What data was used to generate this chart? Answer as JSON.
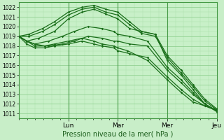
{
  "bg_color": "#c8eec8",
  "plot_bg_color": "#c8f0c8",
  "grid_major_color": "#88cc88",
  "grid_minor_color": "#aaddaa",
  "line_color": "#1a6e1a",
  "xlabel": "Pression niveau de la mer( hPa )",
  "ylim": [
    1010.5,
    1022.5
  ],
  "ytick_min": 1011,
  "ytick_max": 1022,
  "day_labels": [
    "Lun",
    "Mar",
    "Mer",
    "Jeu"
  ],
  "total_days": 4,
  "series": [
    {
      "x": [
        0,
        0.05,
        0.12,
        0.18,
        0.25,
        0.32,
        0.38,
        0.44,
        0.5,
        0.56,
        0.62,
        0.69,
        0.75,
        0.82,
        0.88,
        0.94,
        1.0
      ],
      "y": [
        1019,
        1019.2,
        1019.8,
        1020.5,
        1021.5,
        1022.0,
        1022.2,
        1021.8,
        1021.5,
        1020.5,
        1019.5,
        1019.2,
        1017.0,
        1015.5,
        1014.0,
        1012.5,
        1011.5
      ]
    },
    {
      "x": [
        0,
        0.05,
        0.12,
        0.18,
        0.25,
        0.32,
        0.38,
        0.44,
        0.5,
        0.56,
        0.62,
        0.69,
        0.75,
        0.82,
        0.88,
        0.94,
        1.0
      ],
      "y": [
        1019,
        1019.0,
        1019.5,
        1020.2,
        1021.2,
        1021.8,
        1022.0,
        1021.5,
        1021.2,
        1020.2,
        1019.3,
        1019.0,
        1016.8,
        1015.2,
        1013.8,
        1012.3,
        1011.4
      ]
    },
    {
      "x": [
        0,
        0.04,
        0.1,
        0.18,
        0.25,
        0.32,
        0.38,
        0.44,
        0.5,
        0.56,
        0.62,
        0.69,
        0.75,
        0.82,
        0.88,
        0.94,
        1.0
      ],
      "y": [
        1019,
        1018.5,
        1018.8,
        1019.5,
        1020.8,
        1021.5,
        1021.8,
        1021.3,
        1020.8,
        1019.8,
        1019.5,
        1019.2,
        1016.5,
        1015.0,
        1013.5,
        1012.0,
        1011.3
      ]
    },
    {
      "x": [
        0,
        0.04,
        0.08,
        0.15,
        0.22,
        0.28,
        0.35,
        0.42,
        0.48,
        0.5,
        0.56,
        0.65,
        0.75,
        0.82,
        0.88,
        0.94,
        1.0
      ],
      "y": [
        1019,
        1018.5,
        1018.2,
        1018.5,
        1019.0,
        1019.5,
        1020.0,
        1019.8,
        1019.5,
        1019.2,
        1019.0,
        1018.5,
        1015.8,
        1014.5,
        1013.2,
        1012.0,
        1011.3
      ]
    },
    {
      "x": [
        0,
        0.04,
        0.08,
        0.15,
        0.22,
        0.28,
        0.35,
        0.42,
        0.48,
        0.5,
        0.56,
        0.65,
        0.75,
        0.82,
        0.88,
        0.94,
        1.0
      ],
      "y": [
        1019,
        1018.5,
        1018.0,
        1018.0,
        1018.2,
        1018.5,
        1019.0,
        1018.8,
        1018.5,
        1018.5,
        1018.2,
        1018.0,
        1015.5,
        1014.2,
        1013.0,
        1012.0,
        1011.2
      ]
    },
    {
      "x": [
        0,
        0.04,
        0.08,
        0.13,
        0.18,
        0.25,
        0.32,
        0.38,
        0.42,
        0.48,
        0.5,
        0.56,
        0.65,
        0.75,
        0.82,
        0.88,
        0.94,
        1.0
      ],
      "y": [
        1019,
        1018.2,
        1017.8,
        1017.8,
        1018.0,
        1018.2,
        1018.5,
        1018.2,
        1018.0,
        1017.8,
        1017.5,
        1017.2,
        1016.8,
        1014.8,
        1013.5,
        1012.5,
        1011.8,
        1011.3
      ]
    },
    {
      "x": [
        0,
        0.04,
        0.08,
        0.13,
        0.18,
        0.25,
        0.32,
        0.38,
        0.42,
        0.48,
        0.5,
        0.55,
        0.65,
        0.75,
        0.82,
        0.88,
        0.94,
        1.0
      ],
      "y": [
        1019,
        1018.5,
        1018.2,
        1018.0,
        1018.2,
        1018.5,
        1018.8,
        1018.5,
        1018.2,
        1018.0,
        1017.8,
        1017.5,
        1016.5,
        1014.5,
        1013.2,
        1012.2,
        1011.8,
        1011.4
      ]
    }
  ]
}
